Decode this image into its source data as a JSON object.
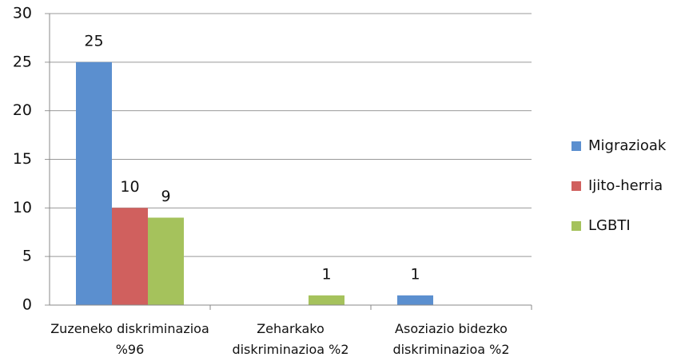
{
  "chart_data": {
    "type": "bar",
    "categories": [
      "Zuzeneko diskriminazioa\n%96",
      "Zeharkako\ndiskriminazioa %2",
      "Asoziazio bidezko\ndiskriminazioa %2"
    ],
    "series": [
      {
        "name": "Migrazioak",
        "color": "#5b8fcf",
        "values": [
          25,
          0,
          1
        ]
      },
      {
        "name": "Ijito-herria",
        "color": "#d0605e",
        "values": [
          10,
          0,
          0
        ]
      },
      {
        "name": "LGBTI",
        "color": "#a5c25c",
        "values": [
          9,
          1,
          0
        ]
      }
    ],
    "ylim": [
      0,
      30
    ],
    "yticks": [
      0,
      5,
      10,
      15,
      20,
      25,
      30
    ],
    "grid": true,
    "legend": "right"
  }
}
